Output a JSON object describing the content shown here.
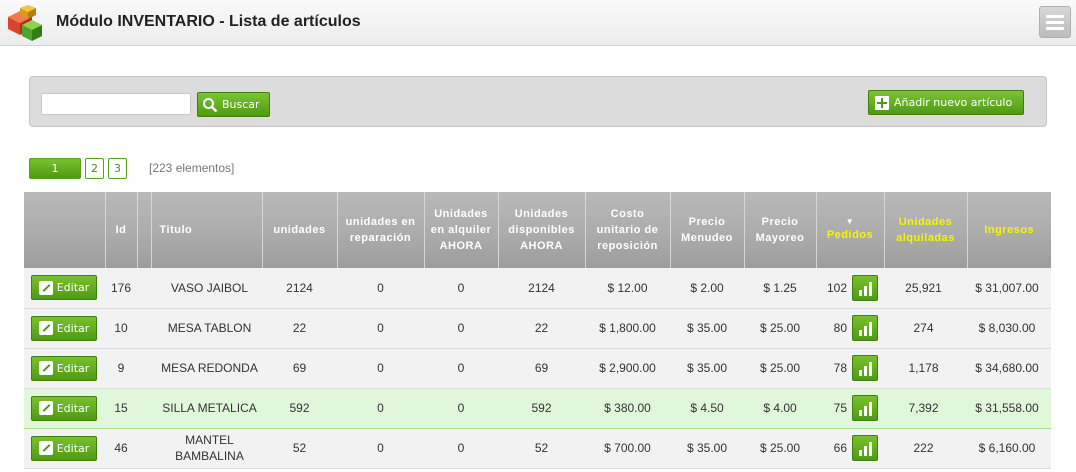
{
  "header": {
    "title": "Módulo INVENTARIO - Lista de artículos",
    "logo_icon": "boxes-icon",
    "menu_icon": "hamburger-icon"
  },
  "search": {
    "value": "",
    "placeholder": "",
    "button_label": "Buscar",
    "add_label": "Añadir nuevo artículo"
  },
  "pagination": {
    "pages": [
      "1",
      "2",
      "3"
    ],
    "active": "1",
    "count_label": "[223 elementos]"
  },
  "table": {
    "columns": {
      "id": "Id",
      "title": "Titulo",
      "units": "unidades",
      "repair": "unidades en reparación",
      "rented_now": "Unidades en alquiler AHORA",
      "available_now": "Unidades disponibles AHORA",
      "cost": "Costo unitario de reposición",
      "retail": "Precio Menudeo",
      "wholesale": "Precio Mayoreo",
      "orders": "Pedidos",
      "rented_units": "Unidades alquiladas",
      "income": "Ingresos"
    },
    "sort_indicator": "▼",
    "edit_label": "Editar",
    "rows": [
      {
        "id": "176",
        "title": "VASO JAIBOL",
        "units": "2124",
        "repair": "0",
        "rented_now": "0",
        "available_now": "2124",
        "cost": "$ 12.00",
        "retail": "$ 2.00",
        "wholesale": "$ 1.25",
        "orders": "102",
        "rented_units": "25,921",
        "income": "$ 31,007.00"
      },
      {
        "id": "10",
        "title": "MESA TABLON",
        "units": "22",
        "repair": "0",
        "rented_now": "0",
        "available_now": "22",
        "cost": "$ 1,800.00",
        "retail": "$ 35.00",
        "wholesale": "$ 25.00",
        "orders": "80",
        "rented_units": "274",
        "income": "$ 8,030.00"
      },
      {
        "id": "9",
        "title": "MESA REDONDA",
        "units": "69",
        "repair": "0",
        "rented_now": "0",
        "available_now": "69",
        "cost": "$ 2,900.00",
        "retail": "$ 35.00",
        "wholesale": "$ 25.00",
        "orders": "78",
        "rented_units": "1,178",
        "income": "$ 34,680.00"
      },
      {
        "id": "15",
        "title": "SILLA METALICA",
        "units": "592",
        "repair": "0",
        "rented_now": "0",
        "available_now": "592",
        "cost": "$ 380.00",
        "retail": "$ 4.50",
        "wholesale": "$ 4.00",
        "orders": "75",
        "rented_units": "7,392",
        "income": "$ 31,558.00"
      },
      {
        "id": "46",
        "title": "MANTEL BAMBALINA",
        "units": "52",
        "repair": "0",
        "rented_now": "0",
        "available_now": "52",
        "cost": "$ 700.00",
        "retail": "$ 35.00",
        "wholesale": "$ 25.00",
        "orders": "66",
        "rented_units": "222",
        "income": "$ 6,160.00"
      }
    ]
  }
}
